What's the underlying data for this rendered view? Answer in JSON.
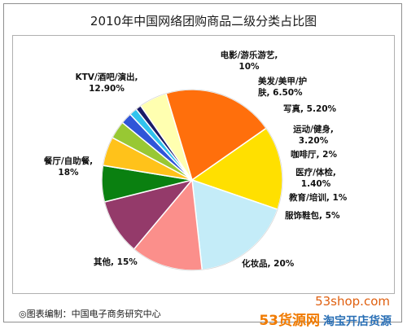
{
  "title": "2010年中国网络团购商品二级分类占比图",
  "footer": "◎图表编制：中国电子商务研究中心",
  "watermark": {
    "url": "53shop.com",
    "brand_name": "53货源网",
    "brand_slogan": "淘宝开店货源"
  },
  "chart_data": {
    "type": "pie",
    "title": "2010年中国网络团购商品二级分类占比图",
    "slices": [
      {
        "name": "电影/游乐游艺",
        "value": 10,
        "label": "10%",
        "color": "#943a6a"
      },
      {
        "name": "美发/美甲/护肤",
        "value": 6.5,
        "label": "6.50%",
        "color": "#0a8010"
      },
      {
        "name": "写真",
        "value": 5.2,
        "label": "5.20%",
        "color": "#ffc21a"
      },
      {
        "name": "运动/健身",
        "value": 3.2,
        "label": "3.20%",
        "color": "#98c833"
      },
      {
        "name": "咖啡厅",
        "value": 2,
        "label": "2%",
        "color": "#2f55d8"
      },
      {
        "name": "医疗/体检",
        "value": 1.4,
        "label": "1.40%",
        "color": "#31c3ee"
      },
      {
        "name": "教育/培训",
        "value": 1,
        "label": "1%",
        "color": "#1a1a66"
      },
      {
        "name": "服饰鞋包",
        "value": 5,
        "label": "5%",
        "color": "#ffffb0"
      },
      {
        "name": "化妆品",
        "value": 20,
        "label": "20%",
        "color": "#ff6f0c"
      },
      {
        "name": "其他",
        "value": 15,
        "label": "15%",
        "color": "#ffe000"
      },
      {
        "name": "餐厅/自助餐",
        "value": 18,
        "label": "18%",
        "color": "#c4ecf8"
      },
      {
        "name": "KTV/酒吧/演出",
        "value": 12.9,
        "label": "12.90%",
        "color": "#fb8f8b"
      }
    ]
  }
}
